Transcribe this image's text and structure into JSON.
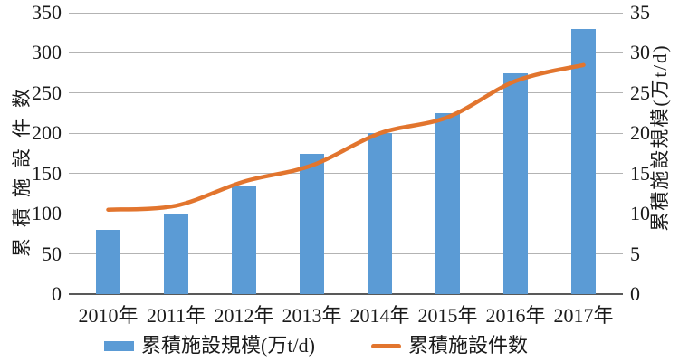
{
  "chart_data": {
    "type": "combo",
    "categories": [
      "2010年",
      "2011年",
      "2012年",
      "2013年",
      "2014年",
      "2015年",
      "2016年",
      "2017年"
    ],
    "series": [
      {
        "name": "累積施設規模(万t/d)",
        "type": "bar",
        "axis": "right",
        "values": [
          8,
          10,
          13.5,
          17.5,
          20,
          22.5,
          27.5,
          33
        ]
      },
      {
        "name": "累積施設件数",
        "type": "line",
        "axis": "left",
        "values": [
          105,
          110,
          140,
          160,
          200,
          220,
          265,
          285
        ]
      }
    ],
    "left_axis": {
      "title": "累積施設件数",
      "min": 0,
      "max": 350,
      "step": 50
    },
    "right_axis": {
      "title": "累積施設規模(万t/d)",
      "min": 0,
      "max": 35,
      "step": 5
    },
    "grid": true,
    "legend_position": "bottom",
    "colors": {
      "bar": "#5B9BD5",
      "line": "#E2752E",
      "gridline": "#B3B3B3",
      "axis_line": "#595959",
      "text": "#1a1a1a"
    }
  }
}
